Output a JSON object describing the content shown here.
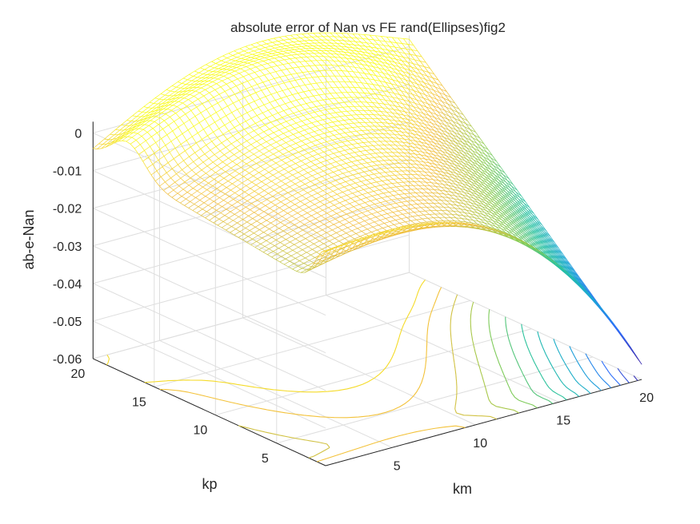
{
  "chart_data": {
    "type": "surface-mesh-contour",
    "title": "absolute error of Nan vs FE rand(Ellipses)fig2",
    "xlabel": "km",
    "ylabel": "kp",
    "zlabel": "ab-e-Nan",
    "xlim": [
      1,
      20
    ],
    "ylim": [
      1,
      20
    ],
    "zlim": [
      -0.06,
      0.003
    ],
    "x_ticks": [
      "5",
      "10",
      "15",
      "20"
    ],
    "y_ticks": [
      "5",
      "10",
      "15",
      "20"
    ],
    "z_ticks": [
      "0",
      "-0.01",
      "-0.02",
      "-0.03",
      "-0.04",
      "-0.05",
      "-0.06"
    ],
    "z_tick_values": [
      0,
      -0.01,
      -0.02,
      -0.03,
      -0.04,
      -0.05,
      -0.06
    ],
    "colormap": [
      "#3e26a8",
      "#2f6efa",
      "#1ba8d4",
      "#26c1a0",
      "#8ccc4f",
      "#f2bd3d",
      "#f9fb15"
    ],
    "grid": true,
    "surface_samples": [
      {
        "km": 1,
        "kp": 20,
        "z": -0.005
      },
      {
        "km": 1,
        "kp": 1,
        "z": -0.013
      },
      {
        "km": 10,
        "kp": 10,
        "z": -0.012
      },
      {
        "km": 20,
        "kp": 20,
        "z": 0.003
      },
      {
        "km": 20,
        "kp": 10,
        "z": -0.025
      },
      {
        "km": 20,
        "kp": 1,
        "z": -0.054
      }
    ]
  }
}
